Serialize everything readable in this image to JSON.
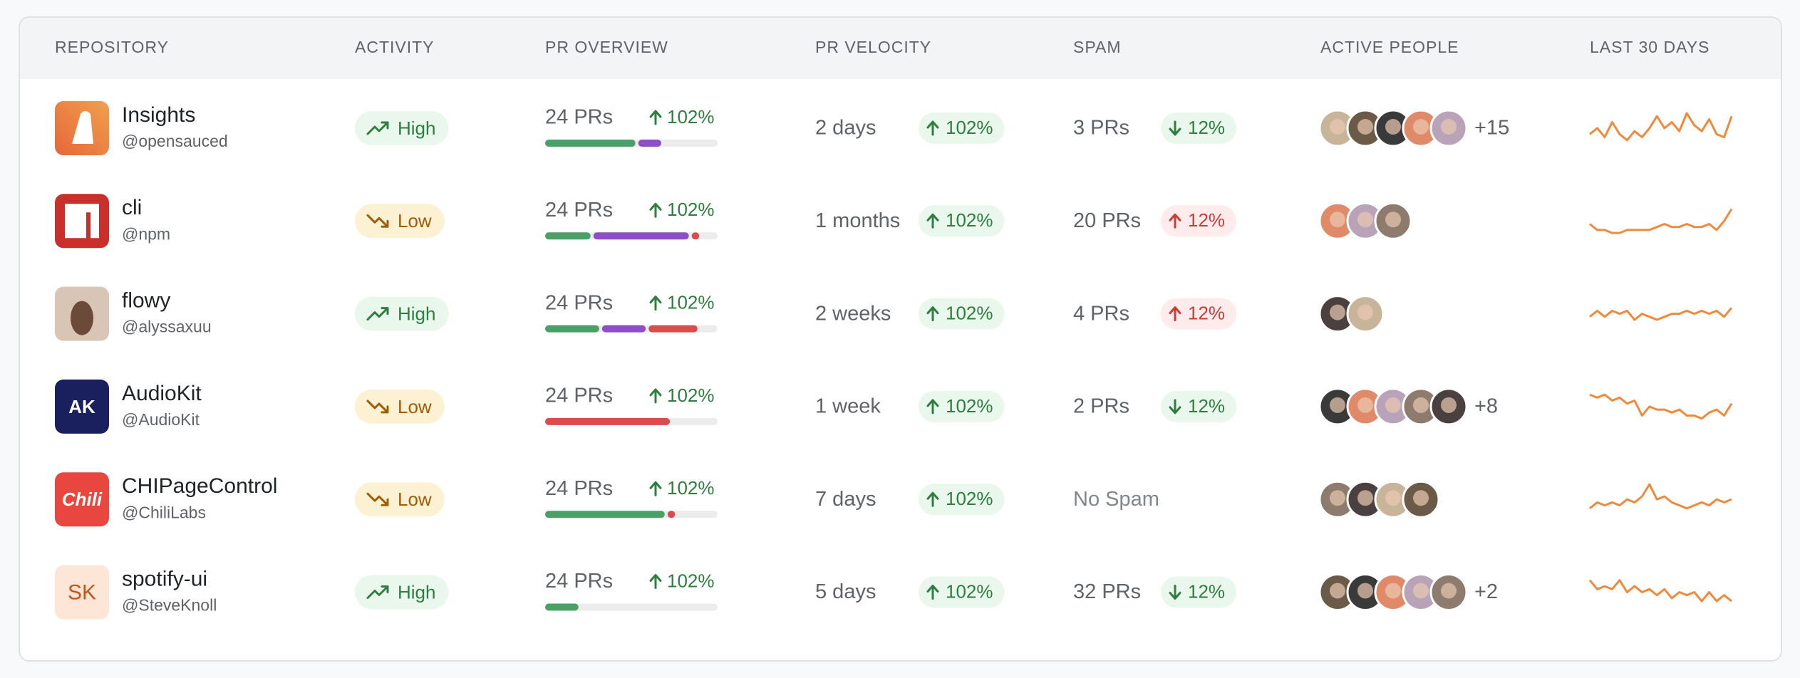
{
  "header": [
    "REPOSITORY",
    "ACTIVITY",
    "PR OVERVIEW",
    "PR VELOCITY",
    "SPAM",
    "ACTIVE PEOPLE",
    "LAST 30 DAYS"
  ],
  "bar_colors": [
    "#4c9f68",
    "#8e4ec6",
    "#dc4c4c"
  ],
  "spark_range": [
    0,
    10
  ],
  "rows": [
    {
      "name": "Insights",
      "owner": "@opensauced",
      "logo": "insights",
      "activity": "High",
      "tone": "green",
      "prs": "24 PRs",
      "pr_change": "102%",
      "pr_mix": [
        54,
        15,
        0
      ],
      "velocity": "2 days",
      "velocity_change": "102%",
      "spam": "3 PRs",
      "spam_change": "12%",
      "spam_trend": "down",
      "avatars": 5,
      "more": "+15",
      "spark": [
        3,
        5,
        2,
        7,
        3,
        1,
        4,
        2,
        5,
        9,
        5,
        7,
        4,
        10,
        6,
        4,
        8,
        3,
        2,
        9
      ]
    },
    {
      "name": "cli",
      "owner": "@npm",
      "logo": "npm",
      "activity": "Low",
      "tone": "amber",
      "prs": "24 PRs",
      "pr_change": "102%",
      "pr_mix": [
        28,
        57,
        6
      ],
      "velocity": "1 months",
      "velocity_change": "102%",
      "spam": "20 PRs",
      "spam_change": "12%",
      "spam_trend": "up",
      "avatars": 3,
      "spark": [
        4,
        2,
        2,
        1,
        1,
        2,
        2,
        2,
        2,
        3,
        4,
        3,
        3,
        4,
        3,
        3,
        4,
        2,
        5,
        9
      ]
    },
    {
      "name": "flowy",
      "owner": "@alyssaxuu",
      "logo": "photo",
      "activity": "High",
      "tone": "green",
      "prs": "24 PRs",
      "pr_change": "102%",
      "pr_mix": [
        33,
        27,
        30
      ],
      "velocity": "2 weeks",
      "velocity_change": "102%",
      "spam": "4 PRs",
      "spam_change": "12%",
      "spam_trend": "up",
      "avatars": 2,
      "spark": [
        4,
        6,
        4,
        6,
        5,
        6,
        3,
        5,
        4,
        3,
        4,
        5,
        5,
        6,
        5,
        6,
        5,
        6,
        4,
        7
      ]
    },
    {
      "name": "AudioKit",
      "owner": "@AudioKit",
      "logo": "ak",
      "logo_text": "AK",
      "activity": "Low",
      "tone": "amber",
      "prs": "24 PRs",
      "pr_change": "102%",
      "pr_mix": [
        0,
        0,
        74
      ],
      "velocity": "1 week",
      "velocity_change": "102%",
      "spam": "2 PRs",
      "spam_change": "12%",
      "spam_trend": "down",
      "avatars": 5,
      "more": "+8",
      "spark": [
        9,
        8,
        9,
        7,
        8,
        6,
        7,
        2,
        5,
        4,
        4,
        3,
        4,
        2,
        2,
        1,
        3,
        4,
        2,
        6
      ]
    },
    {
      "name": "CHIPageControl",
      "owner": "@ChiliLabs",
      "logo": "chili",
      "logo_text": "Chili",
      "activity": "Low",
      "tone": "amber",
      "prs": "24 PRs",
      "pr_change": "102%",
      "pr_mix": [
        71,
        0,
        6
      ],
      "velocity": "7 days",
      "velocity_change": "102%",
      "spam": "No Spam",
      "avatars": 4,
      "spark": [
        2,
        4,
        3,
        4,
        3,
        5,
        4,
        6,
        10,
        5,
        6,
        4,
        3,
        2,
        3,
        4,
        3,
        5,
        4,
        5
      ]
    },
    {
      "name": "spotify-ui",
      "owner": "@SteveKnoll",
      "logo": "sk",
      "logo_text": "SK",
      "activity": "High",
      "tone": "green",
      "prs": "24 PRs",
      "pr_change": "102%",
      "pr_mix": [
        21,
        0,
        0
      ],
      "velocity": "5 days",
      "velocity_change": "102%",
      "spam": "32 PRs",
      "spam_change": "12%",
      "spam_trend": "down",
      "avatars": 5,
      "more": "+2",
      "spark": [
        9,
        6,
        7,
        6,
        9,
        5,
        7,
        5,
        6,
        4,
        6,
        3,
        5,
        4,
        5,
        2,
        5,
        2,
        4,
        2
      ]
    }
  ]
}
